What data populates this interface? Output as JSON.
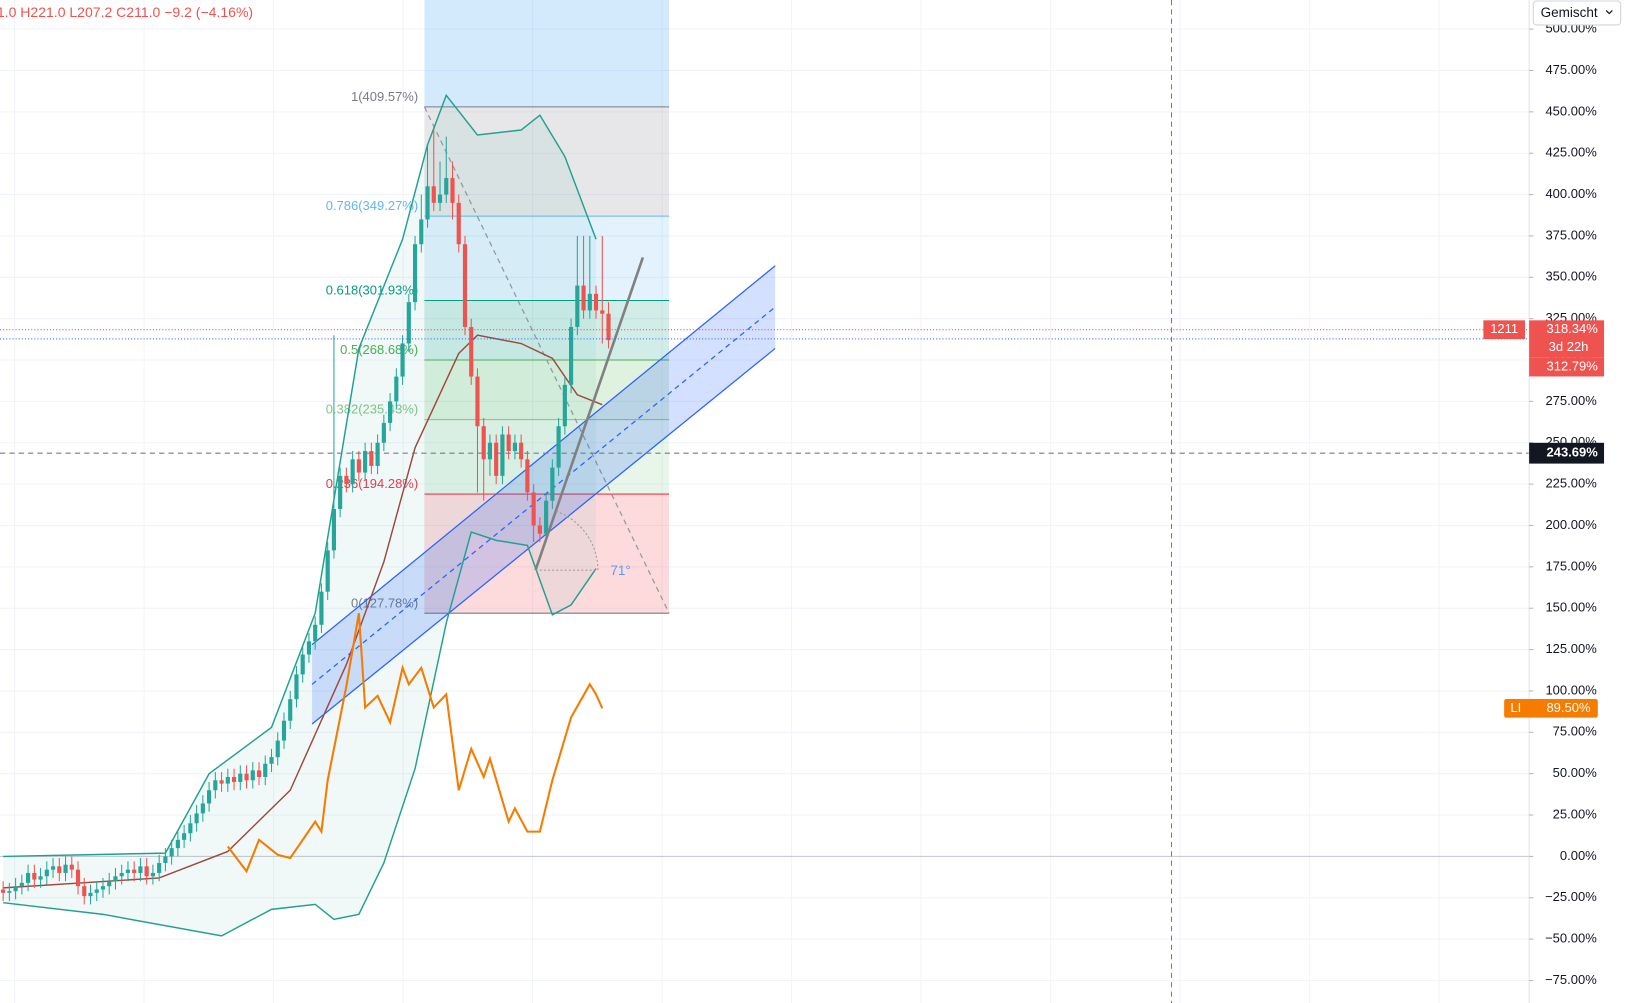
{
  "chart_data": {
    "type": "candlestick",
    "legend_ohlc": "1.0  H221.0  L207.2  C211.0  −9.2 (−4.16%)",
    "button": "Gemischt",
    "up_color": "#26a69a",
    "down_color": "#ef5350",
    "x": [
      0,
      1,
      2,
      3,
      4,
      5,
      6,
      7,
      8,
      9,
      10,
      11,
      12,
      13,
      14,
      15,
      16,
      17,
      18,
      19,
      20,
      21,
      22,
      23,
      24,
      25,
      26,
      27,
      28,
      29,
      30,
      31,
      32,
      33,
      34,
      35,
      36,
      37,
      38,
      39,
      40,
      41,
      42,
      43,
      44,
      45,
      46,
      47,
      48,
      49,
      50,
      51,
      52,
      53,
      54,
      55,
      56,
      57,
      58,
      59,
      60,
      61,
      62,
      63,
      64,
      65,
      66,
      67,
      68,
      69,
      70,
      71,
      72,
      73,
      74,
      75,
      76,
      77,
      78,
      79,
      80,
      81,
      82,
      83,
      84,
      85,
      86,
      87,
      88,
      89,
      90,
      91,
      92,
      93,
      94,
      95,
      96,
      97
    ],
    "open": [
      -20,
      -22,
      -21,
      -18,
      -16,
      -10,
      -14,
      -12,
      -8,
      -6,
      -10,
      -5,
      -8,
      -18,
      -24,
      -22,
      -20,
      -18,
      -15,
      -12,
      -10,
      -8,
      -10,
      -6,
      -12,
      -10,
      -4,
      0,
      5,
      10,
      14,
      20,
      26,
      32,
      40,
      46,
      44,
      48,
      45,
      50,
      46,
      52,
      48,
      56,
      60,
      70,
      82,
      95,
      110,
      122,
      130,
      140,
      160,
      185,
      210,
      230,
      225,
      240,
      232,
      245,
      236,
      250,
      262,
      275,
      290,
      310,
      335,
      370,
      385,
      405,
      395,
      400,
      410,
      395,
      370,
      320,
      290,
      260,
      240,
      250,
      230,
      255,
      245,
      250,
      240,
      220,
      200,
      195,
      215,
      235,
      260,
      285,
      320,
      345,
      330,
      340,
      330,
      328
    ],
    "high": [
      -15,
      -16,
      -13,
      -11,
      -5,
      -5,
      -7,
      -3,
      -1,
      -1,
      0,
      0,
      -3,
      -13,
      -17,
      -15,
      -13,
      -10,
      -7,
      -5,
      -3,
      -3,
      -1,
      -1,
      -5,
      1,
      5,
      10,
      15,
      19,
      25,
      31,
      37,
      45,
      51,
      51,
      53,
      53,
      55,
      55,
      57,
      57,
      61,
      65,
      75,
      87,
      100,
      115,
      127,
      135,
      145,
      165,
      190,
      315,
      235,
      235,
      245,
      245,
      250,
      250,
      255,
      267,
      280,
      295,
      315,
      340,
      375,
      400,
      430,
      440,
      420,
      435,
      420,
      400,
      375,
      325,
      295,
      265,
      255,
      255,
      260,
      260,
      255,
      255,
      245,
      225,
      205,
      220,
      240,
      265,
      290,
      325,
      375,
      375,
      375,
      345,
      375,
      335
    ],
    "low": [
      -27,
      -27,
      -26,
      -23,
      -21,
      -19,
      -19,
      -17,
      -13,
      -15,
      -15,
      -13,
      -23,
      -29,
      -29,
      -27,
      -25,
      -23,
      -20,
      -17,
      -15,
      -15,
      -15,
      -17,
      -17,
      -15,
      -9,
      -5,
      0,
      5,
      9,
      15,
      21,
      27,
      35,
      39,
      39,
      40,
      40,
      41,
      41,
      43,
      43,
      51,
      55,
      65,
      77,
      90,
      105,
      117,
      125,
      135,
      155,
      180,
      205,
      220,
      220,
      227,
      227,
      231,
      231,
      245,
      257,
      270,
      285,
      305,
      330,
      365,
      380,
      390,
      390,
      395,
      385,
      365,
      315,
      285,
      220,
      215,
      230,
      225,
      225,
      240,
      240,
      235,
      215,
      190,
      190,
      190,
      210,
      230,
      255,
      280,
      315,
      325,
      325,
      325,
      310,
      307
    ],
    "close": [
      -22,
      -21,
      -18,
      -16,
      -10,
      -14,
      -12,
      -8,
      -6,
      -10,
      -5,
      -8,
      -18,
      -24,
      -22,
      -20,
      -18,
      -15,
      -12,
      -10,
      -8,
      -10,
      -6,
      -12,
      -10,
      -4,
      0,
      5,
      10,
      14,
      20,
      26,
      32,
      40,
      46,
      44,
      48,
      45,
      50,
      46,
      52,
      48,
      56,
      60,
      70,
      82,
      95,
      110,
      122,
      130,
      140,
      160,
      185,
      210,
      230,
      225,
      240,
      232,
      245,
      236,
      250,
      262,
      275,
      290,
      310,
      335,
      370,
      385,
      405,
      395,
      400,
      410,
      395,
      370,
      320,
      290,
      260,
      240,
      250,
      230,
      255,
      245,
      250,
      240,
      220,
      200,
      195,
      215,
      235,
      260,
      285,
      320,
      345,
      330,
      340,
      330,
      328,
      312
    ],
    "xlim": [
      -0.5,
      244.5
    ],
    "ylim": [
      -88.6,
      517.6
    ],
    "yticks": [
      {
        "value": -75,
        "label": "−75.00%"
      },
      {
        "value": -50,
        "label": "−50.00%"
      },
      {
        "value": -25,
        "label": "−25.00%"
      },
      {
        "value": 0,
        "label": "0.00%"
      },
      {
        "value": 25,
        "label": "25.00%"
      },
      {
        "value": 50,
        "label": "50.00%"
      },
      {
        "value": 75,
        "label": "75.00%"
      },
      {
        "value": 100,
        "label": "100.00%"
      },
      {
        "value": 125,
        "label": "125.00%"
      },
      {
        "value": 150,
        "label": "150.00%"
      },
      {
        "value": 175,
        "label": "175.00%"
      },
      {
        "value": 200,
        "label": "200.00%"
      },
      {
        "value": 225,
        "label": "225.00%"
      },
      {
        "value": 250,
        "label": "250.00%"
      },
      {
        "value": 275,
        "label": "275.00%"
      },
      {
        "value": 300,
        "label": "300.00%"
      },
      {
        "value": 325,
        "label": "325.00%"
      },
      {
        "value": 350,
        "label": "350.00%"
      },
      {
        "value": 375,
        "label": "375.00%"
      },
      {
        "value": 400,
        "label": "400.00%"
      },
      {
        "value": 425,
        "label": "425.00%"
      },
      {
        "value": 450,
        "label": "450.00%"
      },
      {
        "value": 475,
        "label": "475.00%"
      },
      {
        "value": 500,
        "label": "500.00%"
      }
    ],
    "grid": true,
    "lines": [
      {
        "color": "#22a08f",
        "x": [
          0,
          26,
          33,
          43,
          50,
          57,
          64,
          68,
          71,
          76,
          83,
          86,
          90,
          95
        ],
        "values": [
          0,
          2,
          50,
          78,
          147,
          307,
          373,
          430,
          460,
          436,
          439,
          448,
          423,
          373
        ]
      },
      {
        "color": "#22a08f",
        "x": [
          0,
          16,
          35,
          43,
          50,
          53,
          57,
          61,
          66,
          71,
          75,
          79,
          84,
          88,
          91,
          95
        ],
        "values": [
          -28,
          -35,
          -48,
          -32,
          -29,
          -38,
          -35,
          -4,
          53,
          141,
          196,
          191,
          188,
          146,
          152,
          174
        ]
      },
      {
        "color": "#9c4a40",
        "x": [
          0,
          25,
          36,
          46,
          55,
          61,
          66,
          73,
          76,
          83,
          88,
          92,
          96
        ],
        "values": [
          -19,
          -13,
          3,
          40,
          116,
          178,
          247,
          304,
          315,
          310,
          301,
          279,
          273
        ]
      },
      {
        "name": "LI",
        "color": "#f57c00",
        "last_label": "89.50%",
        "x": [
          36,
          39,
          41,
          44,
          46,
          50,
          51,
          52,
          55,
          57,
          58,
          60,
          62,
          64,
          65,
          67,
          69,
          71,
          73,
          75,
          77,
          78,
          81,
          82,
          84,
          86,
          88,
          91,
          94,
          95,
          96
        ],
        "values": [
          6,
          -9,
          10,
          1,
          -1,
          21,
          15,
          46,
          103,
          147,
          90,
          97,
          81,
          114,
          104,
          114,
          90,
          98,
          40,
          65,
          48,
          59,
          21,
          29,
          15,
          15,
          46,
          84,
          104,
          98,
          89.5
        ]
      }
    ],
    "band_fill": {
      "between": [
        0,
        1
      ],
      "color": "#26a69a"
    },
    "fib": {
      "x": [
        67.5,
        106.7
      ],
      "top_zone_color": "#2196f3",
      "levels": [
        {
          "value": 453,
          "label": "1(409.57%)",
          "color": "#787b86"
        },
        {
          "value": 387,
          "label": "0.786(349.27%)",
          "color": "#64b5f6"
        },
        {
          "value": 336,
          "label": "0.618(301.93%)",
          "color": "#089981"
        },
        {
          "value": 300,
          "label": "0.5(268.68%)",
          "color": "#4caf50"
        },
        {
          "value": 264,
          "label": "0.382(235.43%)",
          "color": "#81c784"
        },
        {
          "value": 219,
          "label": "0.236(194.28%)",
          "color": "#f23645"
        },
        {
          "value": 147,
          "label": "0(127.78%)",
          "color": "#787b86"
        }
      ]
    },
    "fib_trend": {
      "x": [
        67.5,
        106.7
      ],
      "values": [
        453,
        147
      ],
      "color": "#9598a1"
    },
    "channel": {
      "x": [
        49.5,
        123.7
      ],
      "upper": [
        128,
        357
      ],
      "lower": [
        80,
        307
      ],
      "color": "#2962ff"
    },
    "trend_line": {
      "x": [
        85.3,
        102.5
      ],
      "values": [
        173,
        362
      ],
      "color": "#808080",
      "angle_label": "71°"
    },
    "price_lines": [
      {
        "value": 318.34,
        "label": "318.34%",
        "tag": "1211",
        "countdown": "3d 22h",
        "color": "#ef5350"
      },
      {
        "value": 312.79,
        "label": "312.79%",
        "color": "#2962ff",
        "box_color": "#ef5350"
      }
    ],
    "crosshair": {
      "x": 187.2,
      "value": 243.69,
      "label": "243.69%"
    }
  }
}
